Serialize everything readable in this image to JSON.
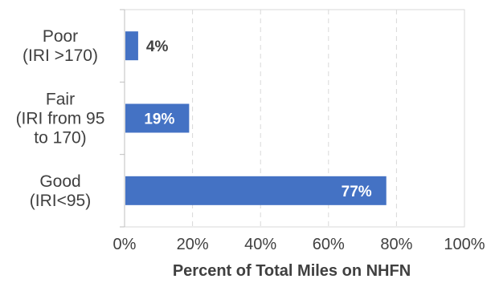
{
  "chart_data": {
    "type": "bar",
    "orientation": "horizontal",
    "categories": [
      [
        "Poor",
        "(IRI >170)"
      ],
      [
        "Fair",
        "(IRI from 95",
        "to 170)"
      ],
      [
        "Good",
        "(IRI<95)"
      ]
    ],
    "values": [
      4,
      19,
      77
    ],
    "data_labels": [
      "4%",
      "19%",
      "77%"
    ],
    "title": "",
    "xlabel": "Percent of Total Miles on NHFN",
    "ylabel": "",
    "xlim": [
      0,
      100
    ],
    "x_ticks": [
      0,
      20,
      40,
      60,
      80,
      100
    ],
    "x_tick_labels": [
      "0%",
      "20%",
      "40%",
      "60%",
      "80%",
      "100%"
    ],
    "grid": "vertical-dashed",
    "bar_color": "#4472C4",
    "legend": "none"
  }
}
